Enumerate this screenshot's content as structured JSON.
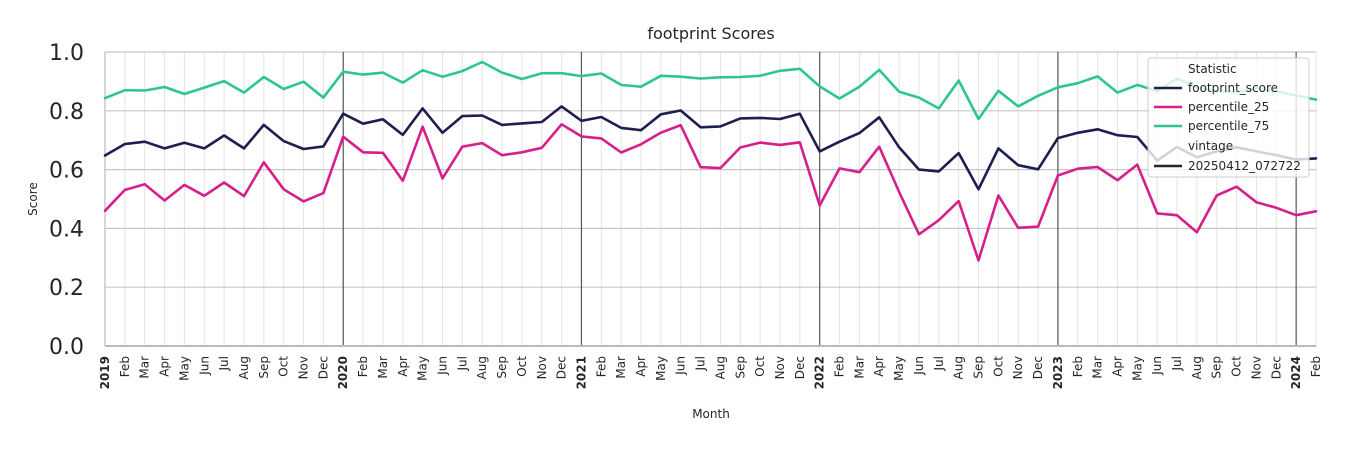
{
  "chart_data": {
    "type": "line",
    "title": "footprint Scores",
    "xlabel": "Month",
    "ylabel": "Score",
    "ylim": [
      0.0,
      1.0
    ],
    "yticks": [
      "0.0",
      "0.2",
      "0.4",
      "0.6",
      "0.8",
      "1.0"
    ],
    "ytick_values": [
      0.0,
      0.2,
      0.4,
      0.6,
      0.8,
      1.0
    ],
    "grid": true,
    "legend_position": "top-right",
    "legend_title": "Statistic",
    "x_labels": [
      "2019",
      "Feb",
      "Mar",
      "Apr",
      "May",
      "Jun",
      "Jul",
      "Aug",
      "Sep",
      "Oct",
      "Nov",
      "Dec",
      "2020",
      "Feb",
      "Mar",
      "Apr",
      "May",
      "Jun",
      "Jul",
      "Aug",
      "Sep",
      "Oct",
      "Nov",
      "Dec",
      "2021",
      "Feb",
      "Mar",
      "Apr",
      "May",
      "Jun",
      "Jul",
      "Aug",
      "Sep",
      "Oct",
      "Nov",
      "Dec",
      "2022",
      "Feb",
      "Mar",
      "Apr",
      "May",
      "Jun",
      "Jul",
      "Aug",
      "Sep",
      "Oct",
      "Nov",
      "Dec",
      "2023",
      "Feb",
      "Mar",
      "Apr",
      "May",
      "Jun",
      "Jul",
      "Aug",
      "Sep",
      "Oct",
      "Nov",
      "Dec",
      "2024",
      "Feb"
    ],
    "year_labels": [
      "2019",
      "2020",
      "2021",
      "2022",
      "2023",
      "2024"
    ],
    "series": [
      {
        "name": "footprint_score",
        "color": "#1c1f4f",
        "values": [
          0.648,
          0.687,
          0.695,
          0.672,
          0.691,
          0.672,
          0.716,
          0.672,
          0.752,
          0.697,
          0.67,
          0.679,
          0.79,
          0.756,
          0.771,
          0.718,
          0.808,
          0.725,
          0.782,
          0.784,
          0.752,
          0.757,
          0.762,
          0.815,
          0.766,
          0.779,
          0.742,
          0.734,
          0.788,
          0.801,
          0.744,
          0.747,
          0.774,
          0.776,
          0.772,
          0.79,
          0.662,
          0.695,
          0.724,
          0.778,
          0.676,
          0.6,
          0.594,
          0.656,
          0.533,
          0.672,
          0.615,
          0.601,
          0.707,
          0.725,
          0.737,
          0.717,
          0.711,
          0.631,
          0.677,
          0.642,
          0.662,
          0.676,
          0.662,
          0.649,
          0.634,
          0.638
        ]
      },
      {
        "name": "percentile_25",
        "color": "#d61f8a",
        "values": [
          0.46,
          0.531,
          0.55,
          0.495,
          0.548,
          0.511,
          0.556,
          0.51,
          0.625,
          0.533,
          0.492,
          0.52,
          0.712,
          0.659,
          0.657,
          0.562,
          0.746,
          0.57,
          0.678,
          0.69,
          0.649,
          0.659,
          0.674,
          0.754,
          0.713,
          0.706,
          0.658,
          0.686,
          0.726,
          0.751,
          0.608,
          0.605,
          0.675,
          0.692,
          0.684,
          0.693,
          0.478,
          0.604,
          0.591,
          0.678,
          0.524,
          0.38,
          0.428,
          0.493,
          0.291,
          0.512,
          0.402,
          0.406,
          0.58,
          0.603,
          0.609,
          0.564,
          0.617,
          0.451,
          0.445,
          0.387,
          0.512,
          0.542,
          0.489,
          0.47,
          0.445,
          0.458
        ]
      },
      {
        "name": "percentile_75",
        "color": "#2ec68c",
        "values": [
          0.843,
          0.87,
          0.869,
          0.881,
          0.857,
          0.879,
          0.901,
          0.862,
          0.915,
          0.874,
          0.899,
          0.845,
          0.933,
          0.923,
          0.93,
          0.896,
          0.938,
          0.916,
          0.935,
          0.966,
          0.93,
          0.908,
          0.928,
          0.928,
          0.918,
          0.927,
          0.888,
          0.882,
          0.919,
          0.916,
          0.91,
          0.914,
          0.915,
          0.919,
          0.936,
          0.943,
          0.883,
          0.842,
          0.882,
          0.939,
          0.865,
          0.845,
          0.808,
          0.903,
          0.772,
          0.868,
          0.815,
          0.851,
          0.88,
          0.894,
          0.917,
          0.862,
          0.888,
          0.867,
          0.91,
          0.88,
          0.868,
          0.862,
          0.878,
          0.866,
          0.852,
          0.838
        ]
      }
    ],
    "vintage_label": "vintage",
    "vintage_value": "20250412_072722"
  }
}
